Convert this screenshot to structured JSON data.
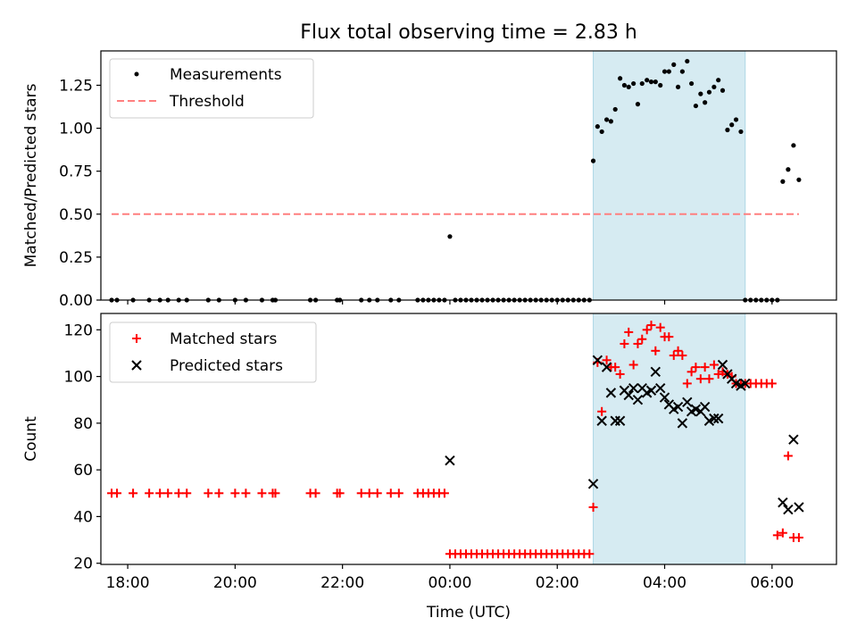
{
  "title": "Flux total observing time = 2.83 h",
  "xlabel": "Time (UTC)",
  "colors": {
    "measurement": "#000000",
    "threshold": "#ff7f7f",
    "matched": "#ff0000",
    "predicted": "#000000",
    "shade_fill": "#add8e6"
  },
  "chart_data": [
    {
      "type": "scatter",
      "ylabel": "Matched/Predicted stars",
      "xlim": [
        -6.5,
        7.2
      ],
      "ylim": [
        0,
        1.45
      ],
      "x_unit": "hours relative to 00:00 UTC",
      "yticks": [
        0.0,
        0.25,
        0.5,
        0.75,
        1.0,
        1.25
      ],
      "ytick_labels": [
        "0.00",
        "0.25",
        "0.50",
        "0.75",
        "1.00",
        "1.25"
      ],
      "legend_position": "top-left",
      "shaded_x": [
        2.67,
        5.5
      ],
      "threshold": {
        "name": "Threshold",
        "value": 0.5,
        "x_range": [
          -6.3,
          6.5
        ]
      },
      "series": [
        {
          "name": "Measurements",
          "x": [
            -6.3,
            -6.2,
            -5.9,
            -5.6,
            -5.4,
            -5.25,
            -5.05,
            -4.9,
            -4.5,
            -4.3,
            -4.0,
            -3.8,
            -3.5,
            -3.3,
            -3.25,
            -2.6,
            -2.5,
            -2.1,
            -2.05,
            -1.65,
            -1.5,
            -1.35,
            -1.1,
            -0.95,
            -0.6,
            -0.5,
            -0.4,
            -0.3,
            -0.2,
            -0.1,
            0.0,
            0.1,
            0.2,
            0.3,
            0.4,
            0.5,
            0.6,
            0.7,
            0.8,
            0.9,
            1.0,
            1.1,
            1.2,
            1.3,
            1.4,
            1.5,
            1.6,
            1.7,
            1.8,
            1.9,
            2.0,
            2.1,
            2.2,
            2.3,
            2.4,
            2.5,
            2.6,
            2.67,
            2.75,
            2.83,
            2.92,
            3.0,
            3.08,
            3.17,
            3.25,
            3.33,
            3.42,
            3.5,
            3.58,
            3.67,
            3.75,
            3.83,
            3.92,
            4.0,
            4.08,
            4.17,
            4.25,
            4.33,
            4.42,
            4.5,
            4.58,
            4.67,
            4.75,
            4.83,
            4.92,
            5.0,
            5.08,
            5.17,
            5.25,
            5.33,
            5.42,
            5.5,
            5.6,
            5.7,
            5.8,
            5.9,
            6.0,
            6.1,
            6.2,
            6.3,
            6.4,
            6.5
          ],
          "y": [
            0,
            0,
            0,
            0,
            0,
            0,
            0,
            0,
            0,
            0,
            0,
            0,
            0,
            0,
            0,
            0,
            0,
            0,
            0,
            0,
            0,
            0,
            0,
            0,
            0,
            0,
            0,
            0,
            0,
            0,
            0.37,
            0,
            0,
            0,
            0,
            0,
            0,
            0,
            0,
            0,
            0,
            0,
            0,
            0,
            0,
            0,
            0,
            0,
            0,
            0,
            0,
            0,
            0,
            0,
            0,
            0,
            0,
            0.81,
            1.01,
            0.98,
            1.05,
            1.04,
            1.11,
            1.29,
            1.25,
            1.24,
            1.26,
            1.14,
            1.26,
            1.28,
            1.27,
            1.27,
            1.25,
            1.33,
            1.33,
            1.37,
            1.24,
            1.33,
            1.39,
            1.26,
            1.13,
            1.2,
            1.15,
            1.21,
            1.24,
            1.28,
            1.22,
            0.99,
            1.02,
            1.05,
            0.98,
            0,
            0,
            0,
            0,
            0,
            0,
            0,
            0.69,
            0.76,
            0.9,
            0.7
          ]
        }
      ]
    },
    {
      "type": "scatter",
      "ylabel": "Count",
      "xlim": [
        -6.5,
        7.2
      ],
      "ylim": [
        19.5,
        127
      ],
      "x_unit": "hours relative to 00:00 UTC",
      "yticks": [
        20,
        40,
        60,
        80,
        100,
        120
      ],
      "ytick_labels": [
        "20",
        "40",
        "60",
        "80",
        "100",
        "120"
      ],
      "xticks": [
        -6,
        -4,
        -2,
        0,
        2,
        4,
        6
      ],
      "xtick_labels": [
        "18:00",
        "20:00",
        "22:00",
        "00:00",
        "02:00",
        "04:00",
        "06:00"
      ],
      "legend_position": "top-left",
      "shaded_x": [
        2.67,
        5.5
      ],
      "series": [
        {
          "name": "Matched stars",
          "marker": "plus",
          "x": [
            -6.3,
            -6.2,
            -5.9,
            -5.6,
            -5.4,
            -5.25,
            -5.05,
            -4.9,
            -4.5,
            -4.3,
            -4.0,
            -3.8,
            -3.5,
            -3.3,
            -3.25,
            -2.6,
            -2.5,
            -2.1,
            -2.05,
            -1.65,
            -1.5,
            -1.35,
            -1.1,
            -0.95,
            -0.6,
            -0.5,
            -0.4,
            -0.3,
            -0.2,
            -0.1,
            0.0,
            0.1,
            0.2,
            0.3,
            0.4,
            0.5,
            0.6,
            0.7,
            0.8,
            0.9,
            1.0,
            1.1,
            1.2,
            1.3,
            1.4,
            1.5,
            1.6,
            1.7,
            1.8,
            1.9,
            2.0,
            2.1,
            2.2,
            2.3,
            2.4,
            2.5,
            2.6,
            2.67,
            2.75,
            2.83,
            2.92,
            3.0,
            3.08,
            3.17,
            3.25,
            3.33,
            3.42,
            3.5,
            3.58,
            3.67,
            3.75,
            3.83,
            3.92,
            4.0,
            4.08,
            4.17,
            4.25,
            4.33,
            4.42,
            4.5,
            4.58,
            4.67,
            4.75,
            4.83,
            4.92,
            5.0,
            5.08,
            5.17,
            5.25,
            5.33,
            5.42,
            5.5,
            5.6,
            5.7,
            5.8,
            5.9,
            6.0,
            6.1,
            6.2,
            6.3,
            6.4,
            6.5
          ],
          "y": [
            50,
            50,
            50,
            50,
            50,
            50,
            50,
            50,
            50,
            50,
            50,
            50,
            50,
            50,
            50,
            50,
            50,
            50,
            50,
            50,
            50,
            50,
            50,
            50,
            50,
            50,
            50,
            50,
            50,
            50,
            24,
            24,
            24,
            24,
            24,
            24,
            24,
            24,
            24,
            24,
            24,
            24,
            24,
            24,
            24,
            24,
            24,
            24,
            24,
            24,
            24,
            24,
            24,
            24,
            24,
            24,
            24,
            44,
            106,
            85,
            107,
            104,
            104,
            101,
            114,
            119,
            105,
            114,
            116,
            120,
            122,
            111,
            121,
            117,
            117,
            109,
            111,
            109,
            97,
            102,
            104,
            99,
            104,
            99,
            105,
            101,
            102,
            101,
            100,
            97,
            97,
            97,
            97,
            97,
            97,
            97,
            97,
            32,
            33,
            66,
            31,
            31
          ]
        },
        {
          "name": "Predicted stars",
          "marker": "x",
          "x": [
            0.0,
            2.67,
            2.75,
            2.83,
            2.92,
            3.0,
            3.08,
            3.17,
            3.25,
            3.33,
            3.42,
            3.5,
            3.58,
            3.67,
            3.75,
            3.83,
            3.92,
            4.0,
            4.08,
            4.17,
            4.25,
            4.33,
            4.42,
            4.5,
            4.58,
            4.67,
            4.75,
            4.83,
            4.92,
            5.0,
            5.08,
            5.17,
            5.25,
            5.33,
            5.42,
            5.5,
            6.2,
            6.3,
            6.4,
            6.5
          ],
          "y": [
            64,
            54,
            107,
            81,
            104,
            93,
            81,
            81,
            94,
            92,
            95,
            90,
            95,
            93,
            94,
            102,
            95,
            91,
            88,
            86,
            87,
            80,
            89,
            85,
            86,
            85,
            87,
            81,
            82,
            82,
            105,
            101,
            99,
            97,
            96,
            97,
            46,
            43,
            73,
            44
          ]
        }
      ]
    }
  ]
}
